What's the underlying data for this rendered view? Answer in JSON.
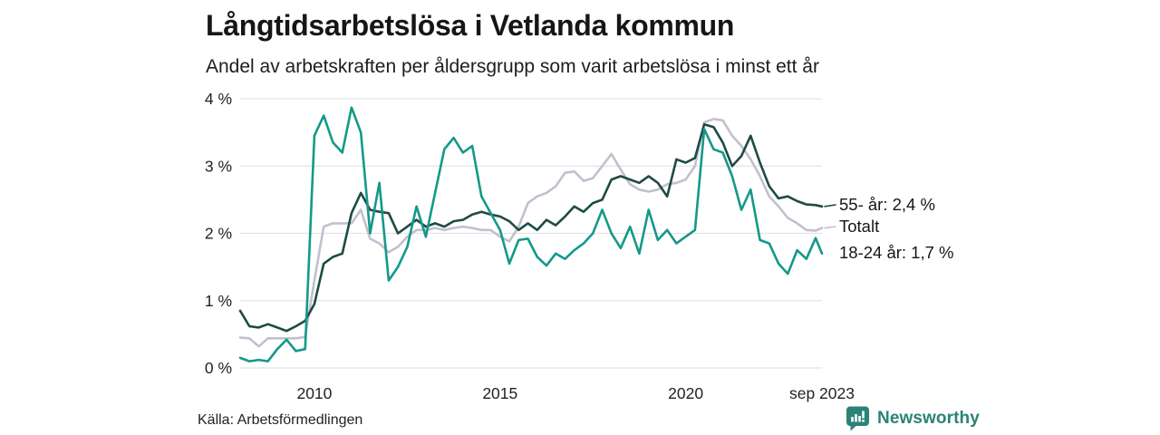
{
  "header": {
    "title": "Långtidsarbetslösa i Vetlanda kommun",
    "subtitle": "Andel av arbetskraften per åldersgrupp som varit arbetslösa i minst ett år"
  },
  "footer": {
    "source": "Källa: Arbetsförmedlingen",
    "brand": "Newsworthy",
    "brand_color": "#2b8377"
  },
  "colors": {
    "grid": "#e4e3e9",
    "axis_text": "#222222",
    "series_55": "#1e4b43",
    "series_total": "#c2c0cd",
    "series_18_24": "#13998a"
  },
  "chart_data": {
    "type": "line",
    "title": "Långtidsarbetslösa i Vetlanda kommun",
    "subtitle": "Andel av arbetskraften per åldersgrupp som varit arbetslösa i minst ett år",
    "xlabel": "",
    "ylabel": "",
    "x_unit": "decimal_year",
    "x_range": [
      2008,
      2023.67
    ],
    "ylim": [
      0,
      4
    ],
    "grid": "horizontal",
    "legend_position": "right-end-labels",
    "y_ticks": [
      {
        "value": 0,
        "label": "0 %"
      },
      {
        "value": 1,
        "label": "1 %"
      },
      {
        "value": 2,
        "label": "2 %"
      },
      {
        "value": 3,
        "label": "3 %"
      },
      {
        "value": 4,
        "label": "4 %"
      }
    ],
    "x_ticks": [
      {
        "value": 2010,
        "label": "2010"
      },
      {
        "value": 2015,
        "label": "2015"
      },
      {
        "value": 2020,
        "label": "2020"
      },
      {
        "value": 2023.67,
        "label": "sep 2023"
      }
    ],
    "x": [
      2008,
      2008.25,
      2008.5,
      2008.75,
      2009,
      2009.25,
      2009.5,
      2009.75,
      2010,
      2010.25,
      2010.5,
      2010.75,
      2011,
      2011.25,
      2011.5,
      2011.75,
      2012,
      2012.25,
      2012.5,
      2012.75,
      2013,
      2013.25,
      2013.5,
      2013.75,
      2014,
      2014.25,
      2014.5,
      2014.75,
      2015,
      2015.25,
      2015.5,
      2015.75,
      2016,
      2016.25,
      2016.5,
      2016.75,
      2017,
      2017.25,
      2017.5,
      2017.75,
      2018,
      2018.25,
      2018.5,
      2018.75,
      2019,
      2019.25,
      2019.5,
      2019.75,
      2020,
      2020.25,
      2020.5,
      2020.75,
      2021,
      2021.25,
      2021.5,
      2021.75,
      2022,
      2022.25,
      2022.5,
      2022.75,
      2023,
      2023.25,
      2023.5,
      2023.67
    ],
    "series": [
      {
        "name": "55- år",
        "end_label": "55- år: 2,4 %",
        "end_value_label": "2,4 %",
        "color": "#1e4b43",
        "values": [
          0.85,
          0.62,
          0.6,
          0.65,
          0.6,
          0.55,
          0.62,
          0.7,
          0.95,
          1.55,
          1.65,
          1.7,
          2.3,
          2.6,
          2.35,
          2.32,
          2.3,
          2.0,
          2.1,
          2.2,
          2.1,
          2.15,
          2.1,
          2.18,
          2.2,
          2.28,
          2.32,
          2.28,
          2.25,
          2.18,
          2.05,
          2.15,
          2.05,
          2.2,
          2.12,
          2.25,
          2.4,
          2.32,
          2.45,
          2.5,
          2.8,
          2.85,
          2.8,
          2.75,
          2.85,
          2.75,
          2.55,
          3.1,
          3.05,
          3.12,
          3.62,
          3.58,
          3.35,
          3.0,
          3.15,
          3.45,
          3.05,
          2.7,
          2.52,
          2.55,
          2.48,
          2.43,
          2.42,
          2.4
        ]
      },
      {
        "name": "Totalt",
        "end_label": "Totalt",
        "end_value_label": "",
        "color": "#c2c0cd",
        "values": [
          0.45,
          0.44,
          0.32,
          0.44,
          0.44,
          0.44,
          0.44,
          0.46,
          1.3,
          2.1,
          2.15,
          2.15,
          2.15,
          2.35,
          1.92,
          1.85,
          1.72,
          1.8,
          1.95,
          2.05,
          2.05,
          2.08,
          2.05,
          2.08,
          2.1,
          2.08,
          2.05,
          2.05,
          1.95,
          1.88,
          2.1,
          2.45,
          2.55,
          2.6,
          2.7,
          2.9,
          2.92,
          2.78,
          2.82,
          3.0,
          3.18,
          2.95,
          2.73,
          2.65,
          2.62,
          2.65,
          2.73,
          2.75,
          2.8,
          3.0,
          3.65,
          3.7,
          3.68,
          3.45,
          3.3,
          3.1,
          2.85,
          2.55,
          2.4,
          2.23,
          2.15,
          2.05,
          2.04,
          2.08
        ]
      },
      {
        "name": "18-24 år",
        "end_label": "18-24 år: 1,7 %",
        "end_value_label": "1,7 %",
        "color": "#13998a",
        "values": [
          0.15,
          0.1,
          0.12,
          0.1,
          0.28,
          0.42,
          0.25,
          0.28,
          3.45,
          3.75,
          3.35,
          3.2,
          3.87,
          3.5,
          2.0,
          2.75,
          1.3,
          1.5,
          1.8,
          2.4,
          1.95,
          2.6,
          3.25,
          3.42,
          3.2,
          3.3,
          2.55,
          2.3,
          2.05,
          1.55,
          1.9,
          1.92,
          1.65,
          1.52,
          1.7,
          1.62,
          1.75,
          1.85,
          2.0,
          2.35,
          2.0,
          1.78,
          2.1,
          1.7,
          2.35,
          1.9,
          2.05,
          1.85,
          1.95,
          2.05,
          3.55,
          3.25,
          3.2,
          2.85,
          2.35,
          2.65,
          1.9,
          1.85,
          1.55,
          1.4,
          1.75,
          1.62,
          1.93,
          1.7
        ]
      }
    ]
  }
}
